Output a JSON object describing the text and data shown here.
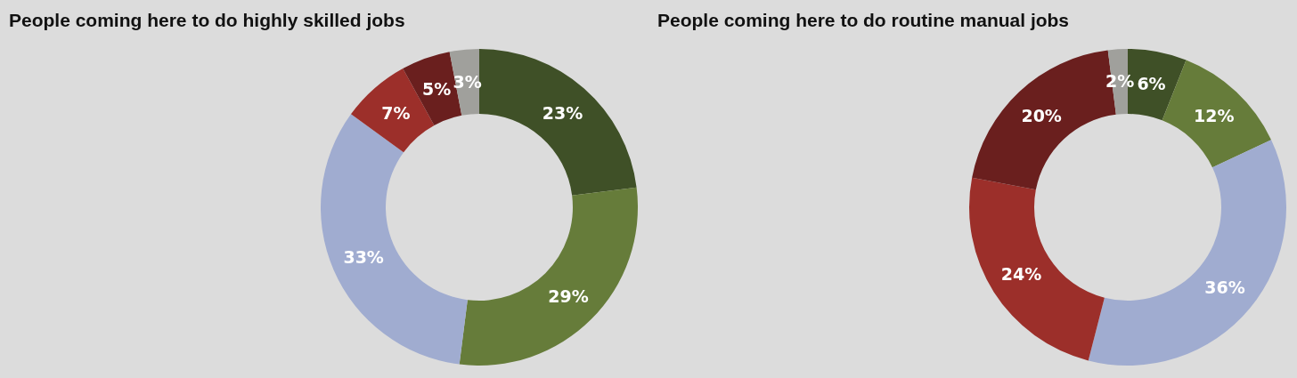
{
  "chart_data": [
    {
      "type": "donut",
      "title": "People coming here to do highly skilled jobs",
      "categories": [
        null,
        null,
        null,
        null,
        null,
        null
      ],
      "values": [
        23,
        29,
        33,
        7,
        5,
        3
      ],
      "colors": [
        "#3f5027",
        "#667c3a",
        "#a0acd0",
        "#9c2f2a",
        "#6a1f1e",
        "#a0a09c"
      ],
      "value_labels": [
        "23%",
        "29%",
        "33%",
        "7%",
        "5%",
        "3%"
      ]
    },
    {
      "type": "donut",
      "title": "People coming here to do routine manual jobs",
      "categories": [
        null,
        null,
        null,
        null,
        null,
        null
      ],
      "values": [
        6,
        12,
        36,
        24,
        20,
        2
      ],
      "colors": [
        "#3f5027",
        "#667c3a",
        "#a0acd0",
        "#9c2f2a",
        "#6a1f1e",
        "#a0a09c"
      ],
      "value_labels": [
        "6%",
        "12%",
        "36%",
        "24%",
        "20%",
        "2%"
      ]
    }
  ]
}
